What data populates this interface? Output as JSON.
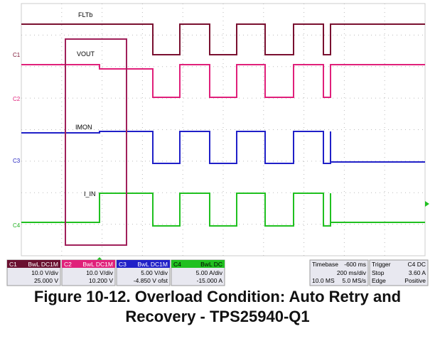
{
  "traces": [
    {
      "channel": "C1",
      "label": "FLTb"
    },
    {
      "channel": "C2",
      "label": "VOUT"
    },
    {
      "channel": "C3",
      "label": "IMON"
    },
    {
      "channel": "C4",
      "label": "I_IN"
    }
  ],
  "channels": [
    {
      "name": "C1",
      "tag": "BwL DC1M",
      "scale": "10.0 V/div",
      "offset": "25.000 V"
    },
    {
      "name": "C2",
      "tag": "BwL DC1M",
      "scale": "10.0 V/div",
      "offset": "10.200 V"
    },
    {
      "name": "C3",
      "tag": "BwL DC1M",
      "scale": "5.00 V/div",
      "offset": "-4.850 V ofst"
    },
    {
      "name": "C4",
      "tag": "BwL DC",
      "scale": "5.00 A/div",
      "offset": "-15.000 A"
    }
  ],
  "timebase": {
    "title": "Timebase",
    "delay": "-600 ms",
    "rate": "200 ms/div",
    "samples": "10.0 MS",
    "sample_rate": "5.0 MS/s"
  },
  "trigger": {
    "title": "Trigger",
    "source": "C4 DC",
    "mode": "Stop",
    "level": "3.60 A",
    "type": "Edge",
    "slope": "Positive"
  },
  "caption": "Figure 10-12. Overload Condition: Auto Retry and Recovery - TPS25940-Q1"
}
